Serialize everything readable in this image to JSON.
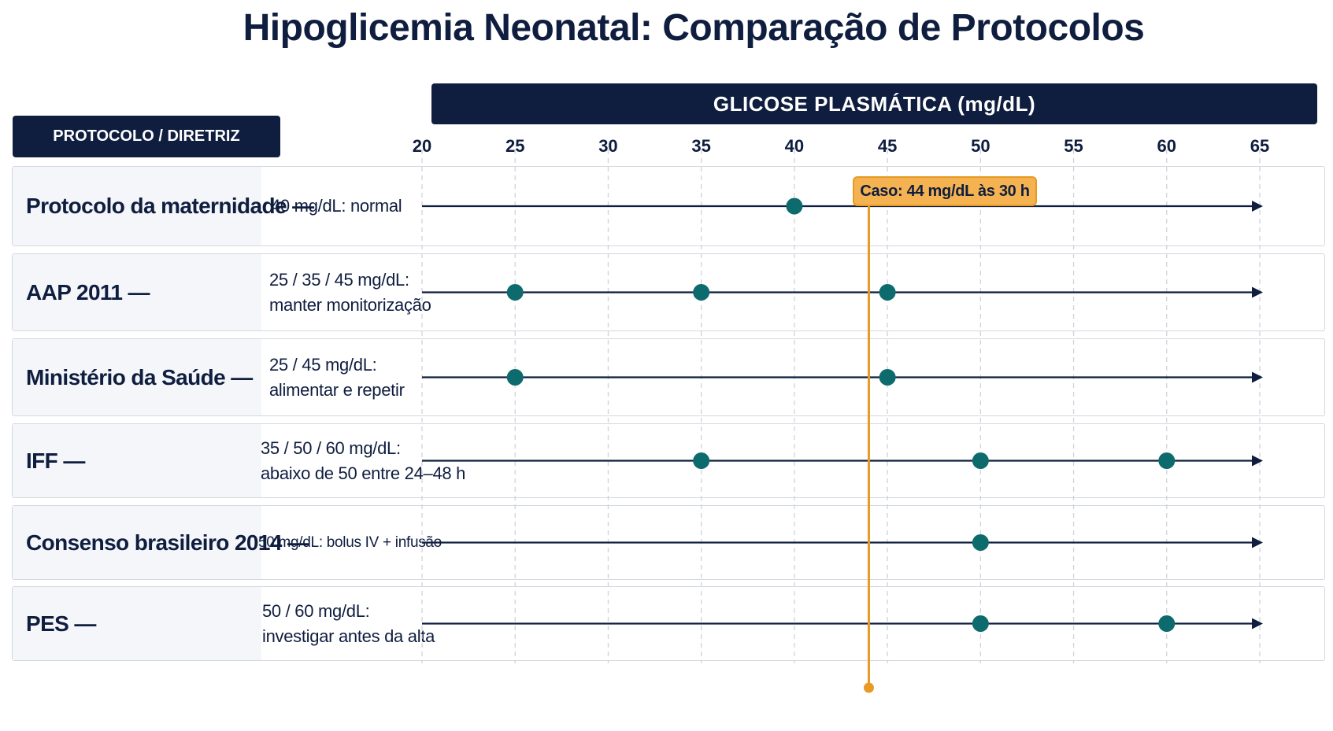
{
  "chart_data": {
    "type": "scatter",
    "title": "Hipoglicemia Neonatal: Comparação de Protocolos",
    "row_header": "PROTOCOLO / DIRETRIZ",
    "xlabel": "GLICOSE PLASMÁTICA (mg/dL)",
    "xlim": [
      20,
      65
    ],
    "xticks": [
      20,
      25,
      30,
      35,
      40,
      45,
      50,
      55,
      60,
      65
    ],
    "grid": true,
    "series": [
      {
        "name": "Protocolo da maternidade —",
        "description": "40 mg/dL: normal",
        "values": [
          40
        ]
      },
      {
        "name": "AAP 2011 —",
        "description": "25 / 35 / 45 mg/dL:\nmanter monitorização",
        "values": [
          25,
          35,
          45
        ]
      },
      {
        "name": "Ministério da Saúde —",
        "description": "25 / 45 mg/dL:\nalimentar e repetir",
        "values": [
          25,
          45
        ]
      },
      {
        "name": "IFF —",
        "description": "35 / 50 / 60 mg/dL:\nabaixo de 50 entre 24–48 h",
        "values": [
          35,
          50,
          60
        ]
      },
      {
        "name": "Consenso brasileiro 2014 —",
        "description": "50 mg/dL: bolus IV + infusão",
        "values": [
          50
        ]
      },
      {
        "name": "PES —",
        "description": "50 / 60 mg/dL:\ninvestigar antes da alta",
        "values": [
          50,
          60
        ]
      }
    ],
    "annotation": {
      "label": "Caso: 44 mg/dL às 30 h",
      "x": 44
    }
  },
  "colors": {
    "navy": "#0f1d3f",
    "point": "#0d6b6e",
    "case_line": "#e79a25",
    "case_fill": "#f4b350",
    "grid": "#cfd3da"
  }
}
